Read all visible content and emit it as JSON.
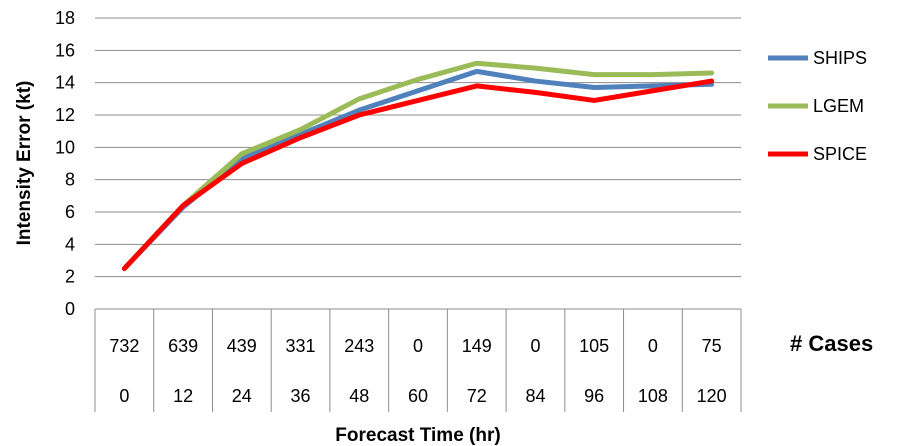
{
  "chart_data": {
    "type": "line",
    "xlabel": "Forecast Time (hr)",
    "ylabel": "Intensity Error (kt)",
    "ylim": [
      0,
      18
    ],
    "yticks": [
      0,
      2,
      4,
      6,
      8,
      10,
      12,
      14,
      16,
      18
    ],
    "grid": "horizontal",
    "legend_position": "right",
    "x": [
      "0",
      "12",
      "24",
      "36",
      "48",
      "60",
      "72",
      "84",
      "96",
      "108",
      "120"
    ],
    "cases_label": "# Cases",
    "cases": [
      "732",
      "639",
      "439",
      "331",
      "243",
      "0",
      "149",
      "0",
      "105",
      "0",
      "75"
    ],
    "series": [
      {
        "name": "SHIPS",
        "color": "#4f81bd",
        "values": [
          2.5,
          6.3,
          9.3,
          10.8,
          12.3,
          13.5,
          14.7,
          14.1,
          13.7,
          13.8,
          13.9
        ]
      },
      {
        "name": "LGEM",
        "color": "#9bbb59",
        "values": [
          2.5,
          6.4,
          9.6,
          11.1,
          13.0,
          14.2,
          15.2,
          14.9,
          14.5,
          14.5,
          14.6
        ]
      },
      {
        "name": "SPICE",
        "color": "#ff0000",
        "values": [
          2.5,
          6.4,
          9.0,
          10.6,
          12.0,
          12.9,
          13.8,
          13.4,
          12.9,
          13.5,
          14.1
        ]
      }
    ]
  }
}
